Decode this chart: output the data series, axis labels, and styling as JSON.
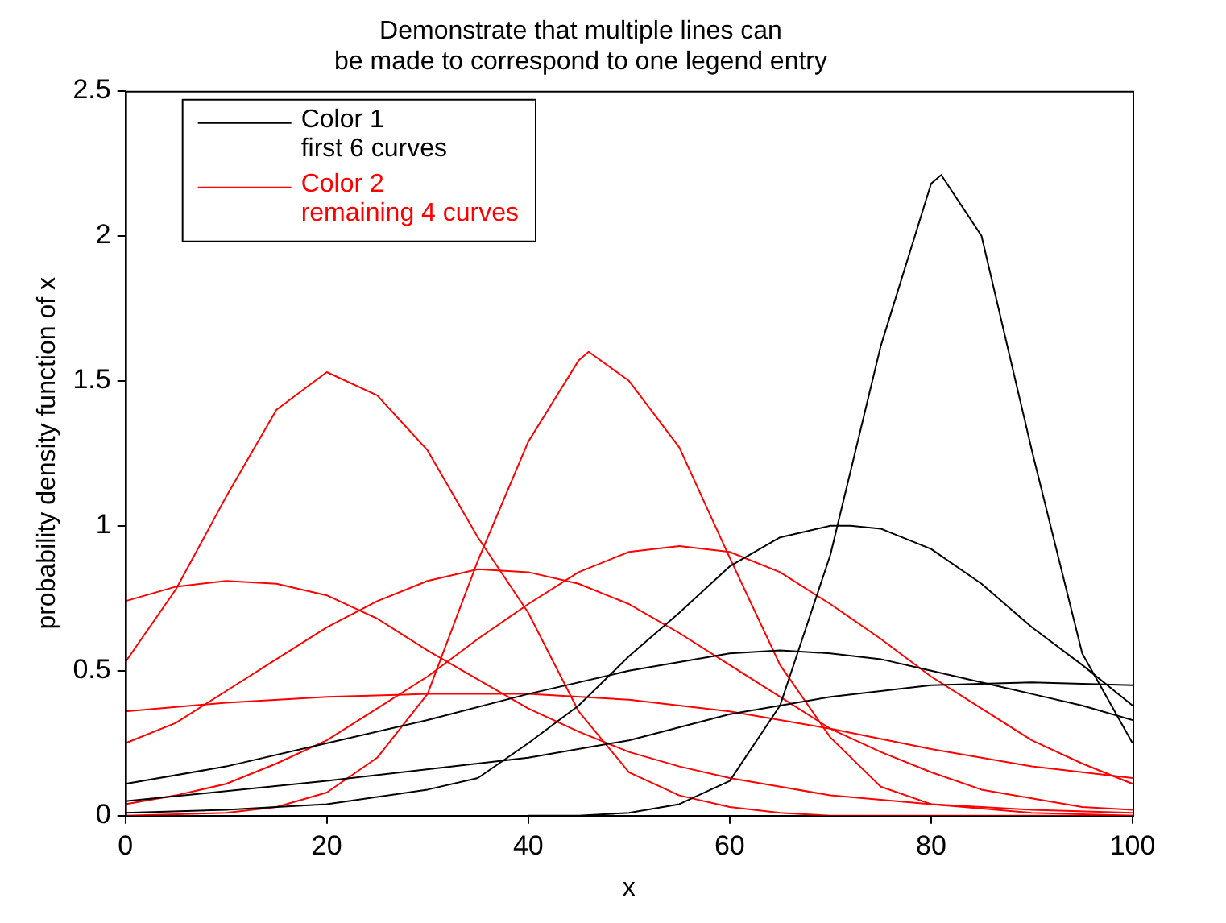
{
  "chart_data": {
    "type": "line",
    "title": "Demonstrate that multiple lines can\nbe made to correspond to one legend entry",
    "xlabel": "x",
    "ylabel": "probability density function of x",
    "xlim": [
      0,
      100
    ],
    "ylim": [
      0,
      2.5
    ],
    "xticks": [
      0,
      20,
      40,
      60,
      80,
      100
    ],
    "yticks": [
      0,
      0.5,
      1,
      1.5,
      2,
      2.5
    ],
    "grid": false,
    "legend": "top left",
    "marker": "none",
    "line_style": "solid",
    "series": [
      {
        "name": "Color 1\nfirst 6 curves",
        "color": "#000000",
        "x": [
          40,
          45,
          50,
          55,
          60,
          65,
          70,
          75,
          80,
          81,
          85,
          90,
          95,
          100
        ],
        "values": [
          0,
          0,
          0.01,
          0.04,
          0.12,
          0.38,
          0.9,
          1.62,
          2.18,
          2.21,
          2,
          1.26,
          0.56,
          0.25
        ]
      },
      {
        "color": "#000000",
        "x": [
          0,
          10,
          20,
          30,
          35,
          40,
          45,
          50,
          55,
          60,
          65,
          70,
          72,
          75,
          80,
          85,
          90,
          95,
          100
        ],
        "values": [
          0.01,
          0.02,
          0.04,
          0.09,
          0.13,
          0.25,
          0.38,
          0.55,
          0.7,
          0.86,
          0.96,
          1,
          1,
          0.99,
          0.92,
          0.8,
          0.65,
          0.52,
          0.38
        ]
      },
      {
        "color": "#000000",
        "x": [
          0,
          10,
          20,
          30,
          40,
          50,
          60,
          65,
          70,
          75,
          80,
          85,
          90,
          95,
          100
        ],
        "values": [
          0.11,
          0.17,
          0.25,
          0.33,
          0.42,
          0.5,
          0.56,
          0.57,
          0.56,
          0.54,
          0.5,
          0.46,
          0.42,
          0.38,
          0.33
        ]
      },
      {
        "color": "#000000",
        "x": [
          0,
          20,
          40,
          50,
          60,
          70,
          80,
          90,
          100
        ],
        "values": [
          0.05,
          0.12,
          0.2,
          0.26,
          0.35,
          0.41,
          0.45,
          0.46,
          0.45
        ]
      },
      {
        "name": "Color 2\nremaining 4 curves",
        "color": "#ff0000",
        "x": [
          0,
          5,
          10,
          15,
          20,
          25,
          30,
          35,
          40,
          45,
          50,
          55,
          60,
          65,
          70,
          80,
          100
        ],
        "values": [
          0.53,
          0.78,
          1.1,
          1.4,
          1.53,
          1.45,
          1.26,
          0.96,
          0.7,
          0.36,
          0.15,
          0.07,
          0.03,
          0.01,
          0,
          0,
          0
        ]
      },
      {
        "color": "#ff0000",
        "x": [
          0,
          10,
          15,
          20,
          25,
          30,
          35,
          40,
          45,
          46,
          50,
          55,
          60,
          65,
          70,
          75,
          80,
          90,
          100
        ],
        "values": [
          0,
          0.01,
          0.03,
          0.08,
          0.2,
          0.42,
          0.88,
          1.29,
          1.57,
          1.6,
          1.5,
          1.27,
          0.89,
          0.52,
          0.27,
          0.1,
          0.04,
          0.01,
          0
        ]
      },
      {
        "color": "#ff0000",
        "x": [
          0,
          5,
          10,
          15,
          20,
          25,
          30,
          35,
          40,
          45,
          50,
          55,
          60,
          65,
          70,
          80,
          90,
          100
        ],
        "values": [
          0.74,
          0.79,
          0.81,
          0.8,
          0.76,
          0.68,
          0.57,
          0.47,
          0.37,
          0.29,
          0.22,
          0.17,
          0.13,
          0.1,
          0.07,
          0.04,
          0.02,
          0.01
        ]
      },
      {
        "color": "#ff0000",
        "x": [
          0,
          5,
          10,
          15,
          20,
          25,
          30,
          35,
          40,
          45,
          50,
          55,
          60,
          65,
          70,
          75,
          80,
          85,
          90,
          95,
          100
        ],
        "values": [
          0.25,
          0.32,
          0.43,
          0.54,
          0.65,
          0.74,
          0.81,
          0.85,
          0.84,
          0.8,
          0.73,
          0.63,
          0.52,
          0.41,
          0.3,
          0.22,
          0.15,
          0.09,
          0.06,
          0.03,
          0.02
        ]
      },
      {
        "color": "#ff0000",
        "x": [
          0,
          5,
          10,
          15,
          20,
          25,
          30,
          35,
          40,
          45,
          50,
          55,
          60,
          65,
          70,
          75,
          80,
          85,
          90,
          95,
          100
        ],
        "values": [
          0.04,
          0.07,
          0.11,
          0.18,
          0.26,
          0.37,
          0.48,
          0.61,
          0.73,
          0.84,
          0.91,
          0.93,
          0.91,
          0.84,
          0.73,
          0.61,
          0.48,
          0.37,
          0.26,
          0.18,
          0.11
        ]
      },
      {
        "color": "#ff0000",
        "x": [
          0,
          10,
          20,
          30,
          40,
          50,
          60,
          70,
          80,
          90,
          100
        ],
        "values": [
          0.36,
          0.39,
          0.41,
          0.42,
          0.42,
          0.4,
          0.36,
          0.3,
          0.23,
          0.17,
          0.13
        ]
      }
    ]
  }
}
